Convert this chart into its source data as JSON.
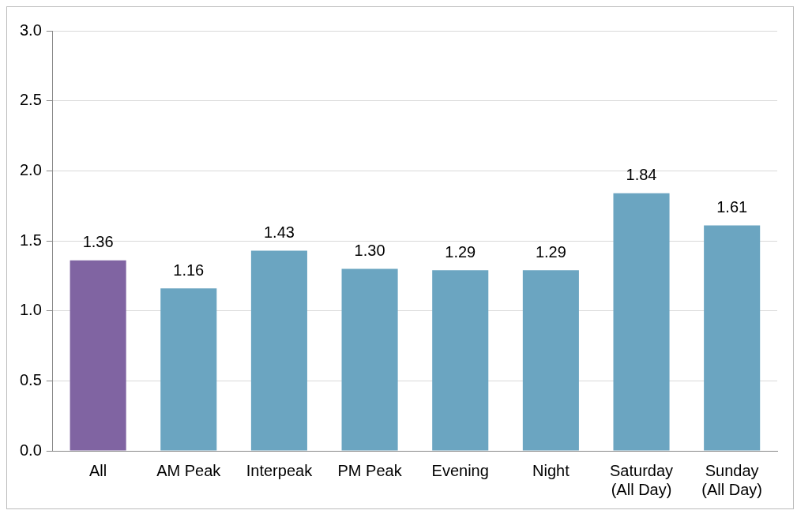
{
  "chart_data": {
    "type": "bar",
    "categories": [
      "All",
      "AM Peak",
      "Interpeak",
      "PM Peak",
      "Evening",
      "Night",
      "Saturday\n(All Day)",
      "Sunday\n(All Day)"
    ],
    "values": [
      1.36,
      1.16,
      1.43,
      1.3,
      1.29,
      1.29,
      1.84,
      1.61
    ],
    "colors": [
      "#8064a2",
      "#6ba5c1",
      "#6ba5c1",
      "#6ba5c1",
      "#6ba5c1",
      "#6ba5c1",
      "#6ba5c1",
      "#6ba5c1"
    ],
    "value_labels": [
      "1.36",
      "1.16",
      "1.43",
      "1.30",
      "1.29",
      "1.29",
      "1.84",
      "1.61"
    ],
    "ylim": [
      0,
      3
    ],
    "yticks": [
      {
        "value": 0,
        "label": "0.0"
      },
      {
        "value": 0.5,
        "label": "0.5"
      },
      {
        "value": 1,
        "label": "1.0"
      },
      {
        "value": 1.5,
        "label": "1.5"
      },
      {
        "value": 2,
        "label": "2.0"
      },
      {
        "value": 2.5,
        "label": "2.5"
      },
      {
        "value": 3,
        "label": "3.0"
      }
    ],
    "grid": "y",
    "legend": false
  }
}
